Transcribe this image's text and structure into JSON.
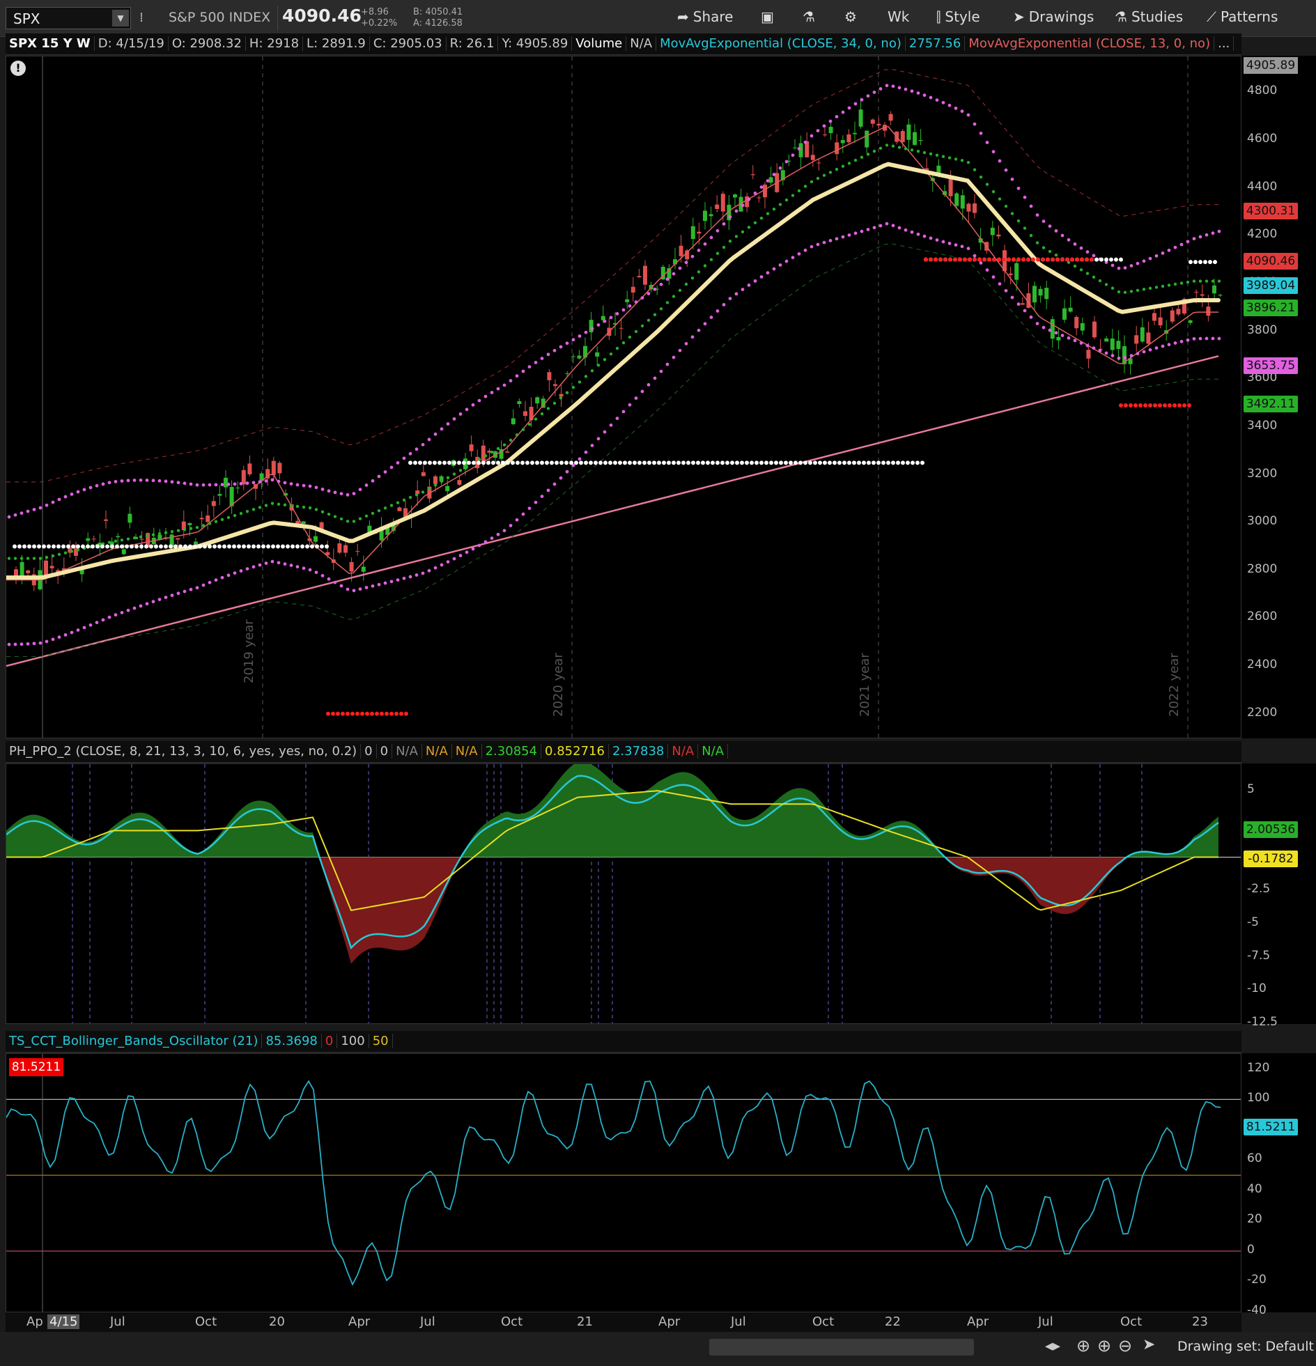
{
  "toolbar": {
    "symbol": "SPX",
    "index_name": "S&P 500 INDEX",
    "last_price": "4090.46",
    "change": "+8.96",
    "change_pct": "+0.22%",
    "bid": "B: 4050.41",
    "ask": "A: 4126.58",
    "share": "Share",
    "aggregation": "Wk",
    "style": "Style",
    "drawings": "Drawings",
    "studies": "Studies",
    "patterns": "Patterns"
  },
  "price_header": {
    "chart_label": "SPX 15 Y W",
    "date": "D: 4/15/19",
    "open": "O: 2908.32",
    "high": "H: 2918",
    "low": "L: 2891.9",
    "close": "C: 2905.03",
    "range": "R: 26.1",
    "y": "Y: 4905.89",
    "volume": "Volume",
    "volume_val": "N/A",
    "ema34": "MovAvgExponential (CLOSE, 34, 0, no)",
    "ema34_val": "2757.56",
    "ema13": "MovAvgExponential (CLOSE, 13, 0, no)",
    "more": "..."
  },
  "ppo_header": {
    "name": "PH_PPO_2 (CLOSE, 8, 21, 13, 3, 10, 6, yes, yes, no, 0.2)",
    "v0": "0",
    "v1": "0",
    "v2": "N/A",
    "v3": "N/A",
    "v4": "N/A",
    "v5": "2.30854",
    "v6": "0.852716",
    "v7": "2.37838",
    "v8": "N/A",
    "v9": "N/A"
  },
  "bbo_header": {
    "name": "TS_CCT_Bollinger_Bands_Oscillator (21)",
    "v0": "85.3698",
    "v1": "0",
    "v2": "100",
    "v3": "50",
    "cursor_badge": "81.5211"
  },
  "price_axis": {
    "ticks": [
      "4800",
      "4600",
      "4400",
      "4200",
      "4000",
      "3800",
      "3600",
      "3400",
      "3200",
      "3000",
      "2800",
      "2600",
      "2400",
      "2200"
    ],
    "top_badge": "4905.89",
    "badges": [
      {
        "label": "4300.31",
        "color": "#e23a3a"
      },
      {
        "label": "4090.46",
        "color": "#e23a3a"
      },
      {
        "label": "3989.04",
        "color": "#28c8d8"
      },
      {
        "label": "3896.21",
        "color": "#28b028"
      },
      {
        "label": "3653.75",
        "color": "#e060e0"
      },
      {
        "label": "3492.11",
        "color": "#28b028"
      }
    ]
  },
  "ppo_axis": {
    "ticks": [
      "5",
      "-2.5",
      "-5",
      "-7.5",
      "-10",
      "-12.5"
    ],
    "badges": [
      {
        "label": "2.00536",
        "color": "#28b028"
      },
      {
        "label": "-0.1782",
        "color": "#f0e020"
      }
    ]
  },
  "bbo_axis": {
    "ticks": [
      "120",
      "100",
      "60",
      "40",
      "20",
      "0",
      "-20",
      "-40"
    ],
    "badge": "81.5211"
  },
  "year_labels": [
    "2019 year",
    "2020 year",
    "2021 year",
    "2022 year"
  ],
  "time_axis": {
    "labels": [
      "Ap",
      "4/15",
      "Jul",
      "Oct",
      "20",
      "Apr",
      "Jul",
      "Oct",
      "21",
      "Apr",
      "Jul",
      "Oct",
      "22",
      "Apr",
      "Jul",
      "Oct",
      "23"
    ]
  },
  "footer": {
    "drawing_set": "Drawing set: Default"
  },
  "colors": {
    "ema34": "#f5e6a8",
    "ema13": "#e06060",
    "sma200": "#e87a9a",
    "bull": "#2db82d",
    "bear": "#e05050",
    "ppo_line": "#28c8d8",
    "ppo_signal": "#e8e020"
  },
  "chart_data": [
    {
      "type": "line",
      "title": "SPX 15 Y W",
      "x": [
        "2019-04",
        "2019-07",
        "2019-10",
        "2020-01",
        "2020-03",
        "2020-04",
        "2020-07",
        "2020-10",
        "2021-01",
        "2021-04",
        "2021-07",
        "2021-10",
        "2022-01",
        "2022-04",
        "2022-07",
        "2022-10",
        "2023-01"
      ],
      "series": [
        {
          "name": "MovAvgExponential (CLOSE, 34, 0, no)",
          "values": [
            2770,
            2840,
            2900,
            3000,
            2980,
            2920,
            3050,
            3250,
            3500,
            3800,
            4100,
            4350,
            4500,
            4430,
            4080,
            3880,
            3930
          ]
        },
        {
          "name": "MovAvgExponential (CLOSE, 13, 0, no)",
          "values": [
            2800,
            2930,
            3000,
            3250,
            2950,
            2820,
            3150,
            3350,
            3700,
            4050,
            4350,
            4550,
            4700,
            4300,
            3900,
            3700,
            3920
          ]
        }
      ],
      "ylim": [
        2100,
        4950
      ]
    },
    {
      "type": "area",
      "title": "PH_PPO_2 (CLOSE, 8, 21, 13, 3, 10, 6, yes, yes, no, 0.2)",
      "ylim": [
        -12.5,
        7
      ]
    },
    {
      "type": "line",
      "title": "TS_CCT_Bollinger_Bands_Oscillator (21)",
      "ylim": [
        -40,
        130
      ]
    }
  ]
}
